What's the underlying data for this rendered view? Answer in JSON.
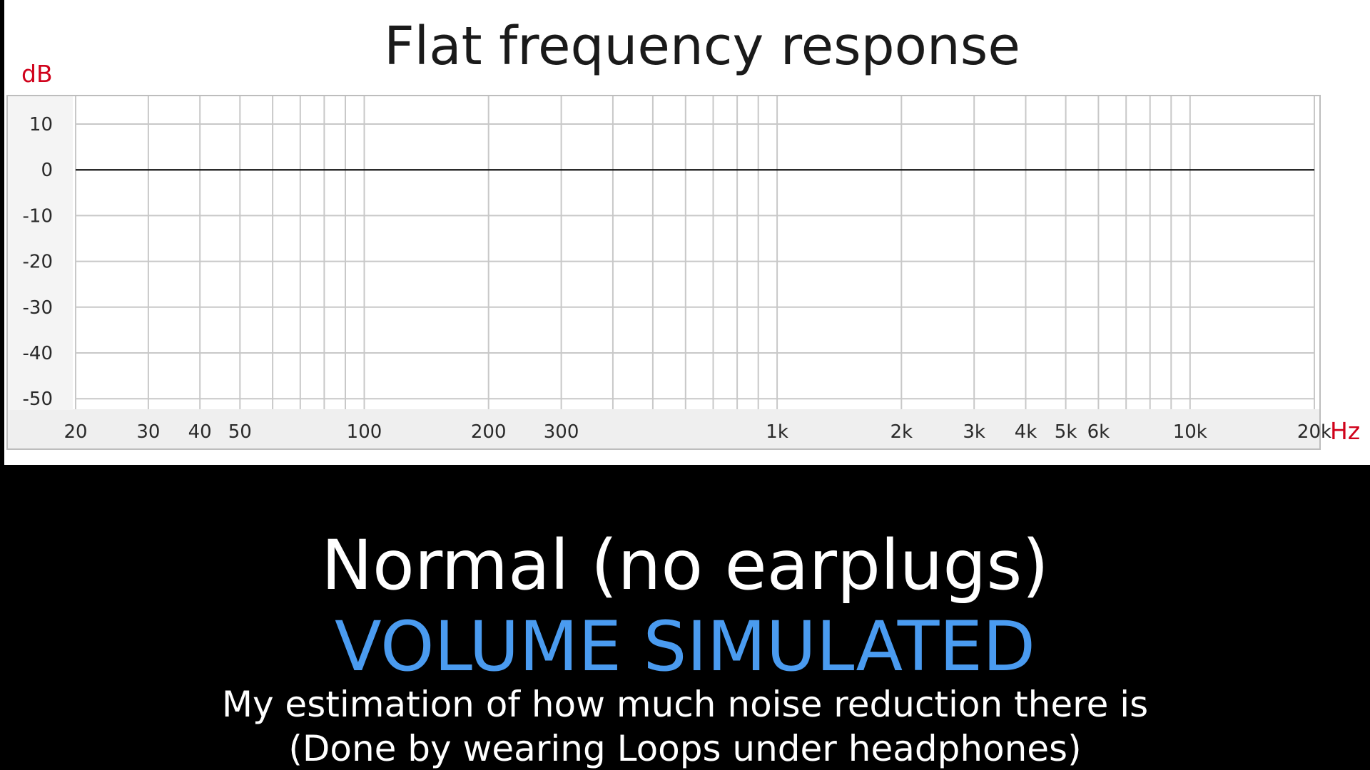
{
  "chart_data": {
    "type": "line",
    "title": "Flat frequency response",
    "ylabel": "dB",
    "xlabel": "Hz",
    "x_scale": "log",
    "xlim": [
      20,
      20000
    ],
    "ylim": [
      -55,
      15
    ],
    "x_ticks": [
      {
        "value": 20,
        "label": "20"
      },
      {
        "value": 30,
        "label": "30"
      },
      {
        "value": 40,
        "label": "40"
      },
      {
        "value": 50,
        "label": "50"
      },
      {
        "value": 100,
        "label": "100"
      },
      {
        "value": 200,
        "label": "200"
      },
      {
        "value": 300,
        "label": "300"
      },
      {
        "value": 1000,
        "label": "1k"
      },
      {
        "value": 2000,
        "label": "2k"
      },
      {
        "value": 3000,
        "label": "3k"
      },
      {
        "value": 4000,
        "label": "4k"
      },
      {
        "value": 5000,
        "label": "5k"
      },
      {
        "value": 6000,
        "label": "6k"
      },
      {
        "value": 10000,
        "label": "10k"
      },
      {
        "value": 20000,
        "label": "20k"
      }
    ],
    "x_gridlines": [
      20,
      30,
      40,
      50,
      60,
      70,
      80,
      90,
      100,
      200,
      300,
      400,
      500,
      600,
      700,
      800,
      900,
      1000,
      2000,
      3000,
      4000,
      5000,
      6000,
      7000,
      8000,
      9000,
      10000,
      20000
    ],
    "y_ticks": [
      {
        "value": 10,
        "label": "10"
      },
      {
        "value": 0,
        "label": "0"
      },
      {
        "value": -10,
        "label": "-10"
      },
      {
        "value": -20,
        "label": "-20"
      },
      {
        "value": -30,
        "label": "-30"
      },
      {
        "value": -40,
        "label": "-40"
      },
      {
        "value": -50,
        "label": "-50"
      }
    ],
    "grid": true,
    "series": [
      {
        "x": [
          20,
          20000
        ],
        "y": [
          0,
          0
        ],
        "color": "#000000"
      }
    ]
  },
  "captions": {
    "main": "Normal (no earplugs)",
    "highlight": "VOLUME SIMULATED",
    "note_line_1": "My estimation of how much noise reduction there is",
    "note_line_2": "(Done by wearing Loops under headphones)"
  },
  "colors": {
    "background": "#000000",
    "chart_panel": "#ffffff",
    "grid": "#c8c8c8",
    "unit_labels": "#d0021b",
    "highlight": "#4a9bf0",
    "caption_text": "#ffffff"
  }
}
